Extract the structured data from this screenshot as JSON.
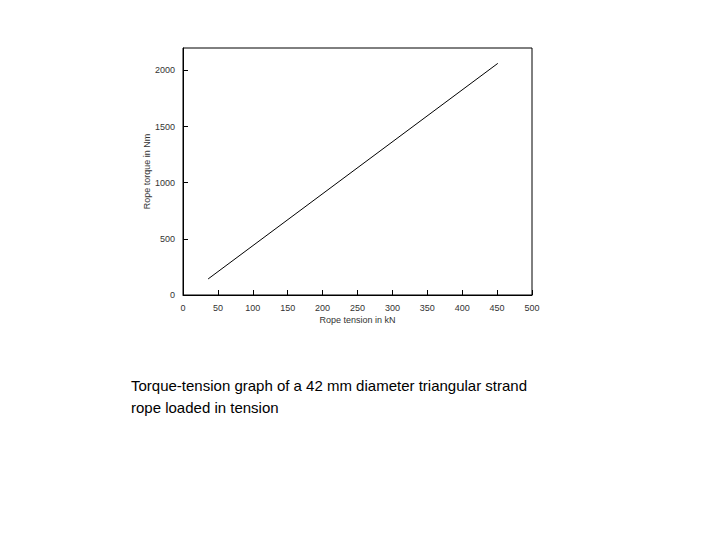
{
  "chart_data": {
    "type": "line",
    "x_label": "Rope tension in kN",
    "y_label": "Rope torque in Nm",
    "caption": "Torque-tension graph of a 42 mm diameter triangular strand rope loaded in tension",
    "x": [
      36,
      451
    ],
    "values": [
      143,
      2063
    ],
    "color": "#000000",
    "xlim": [
      0,
      500
    ],
    "xticks": [
      0,
      50,
      100,
      150,
      200,
      250,
      300,
      350,
      400,
      450,
      500
    ],
    "ylim": [
      0,
      2200
    ],
    "yticks": [
      0,
      500,
      1000,
      1500,
      2000
    ],
    "grid": false
  }
}
